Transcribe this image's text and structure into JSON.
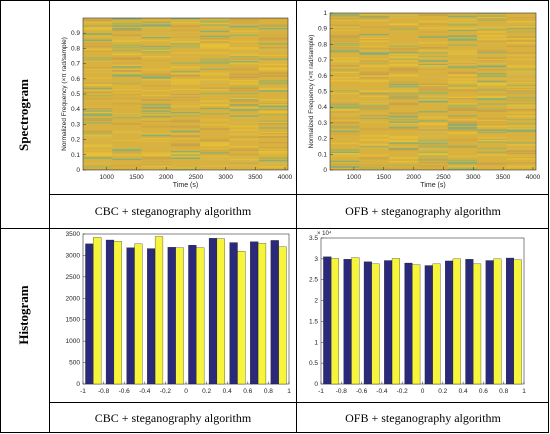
{
  "row_labels": {
    "spectrogram": "Spectrogram",
    "histogram": "Histogram"
  },
  "captions": {
    "spec_left": "CBC + steganography algorithm",
    "spec_right": "OFB + steganography algorithm",
    "hist_left": "CBC + steganography algorithm",
    "hist_right": "OFB + steganography algorithm"
  },
  "colors": {
    "spec_base": "#d9b13e",
    "bar_blue": "#2b2a7a",
    "bar_yellow": "#f6f43b"
  },
  "chart_data": [
    {
      "id": "spec_left",
      "type": "heatmap",
      "xlabel": "Time (s)",
      "ylabel": "Normalized Frequency (×π rad/sample)",
      "xticks": [
        1000,
        1500,
        2000,
        2500,
        3000,
        3500,
        4000
      ],
      "yticks": [
        0,
        0.1,
        0.2,
        0.3,
        0.4,
        0.5,
        0.6,
        0.7,
        0.8,
        0.9
      ],
      "xlim": [
        600,
        4050
      ],
      "ylim": [
        0,
        1
      ],
      "grid": false
    },
    {
      "id": "spec_right",
      "type": "heatmap",
      "xlabel": "Time (s)",
      "ylabel": "Normalized Frequency (×π rad/sample)",
      "xticks": [
        1000,
        1500,
        2000,
        2500,
        3000,
        3500,
        4000
      ],
      "yticks": [
        0,
        0.1,
        0.2,
        0.3,
        0.4,
        0.5,
        0.6,
        0.7,
        0.8,
        0.9,
        1
      ],
      "xlim": [
        600,
        4050
      ],
      "ylim": [
        0,
        1
      ],
      "grid": false
    },
    {
      "id": "hist_left",
      "type": "bar",
      "categories": [
        -0.9,
        -0.7,
        -0.5,
        -0.3,
        -0.1,
        0.1,
        0.3,
        0.5,
        0.7,
        0.9
      ],
      "series": [
        {
          "values": [
            3270,
            3360,
            3180,
            3160,
            3190,
            3240,
            3400,
            3300,
            3320,
            3350
          ]
        },
        {
          "values": [
            3420,
            3330,
            3270,
            3440,
            3180,
            3180,
            3390,
            3100,
            3280,
            3200
          ]
        }
      ],
      "xlim": [
        -1,
        1
      ],
      "ylim": [
        0,
        3500
      ],
      "xticks": [
        -1,
        -0.8,
        -0.6,
        -0.4,
        -0.2,
        0,
        0.2,
        0.4,
        0.6,
        0.8,
        1
      ],
      "yticks": [
        0,
        500,
        1000,
        1500,
        2000,
        2500,
        3000,
        3500
      ],
      "grid": false
    },
    {
      "id": "hist_right",
      "type": "bar",
      "categories": [
        -0.9,
        -0.7,
        -0.5,
        -0.3,
        -0.1,
        0.1,
        0.3,
        0.5,
        0.7,
        0.9
      ],
      "series": [
        {
          "values": [
            3.05,
            2.99,
            2.93,
            2.96,
            2.9,
            2.84,
            2.95,
            2.99,
            2.96,
            3.02
          ]
        },
        {
          "values": [
            3.01,
            3.03,
            2.88,
            3.01,
            2.86,
            2.88,
            3.0,
            2.88,
            3.0,
            2.98
          ]
        }
      ],
      "ylim": [
        0,
        3.5
      ],
      "xlim": [
        -1,
        1
      ],
      "xticks": [
        -1,
        -0.8,
        -0.6,
        -0.4,
        -0.2,
        0,
        0.2,
        0.4,
        0.6,
        0.8,
        1
      ],
      "yticks": [
        0,
        0.5,
        1,
        1.5,
        2,
        2.5,
        3,
        3.5
      ],
      "y_exponent_label": "× 10⁴",
      "grid": false
    }
  ]
}
